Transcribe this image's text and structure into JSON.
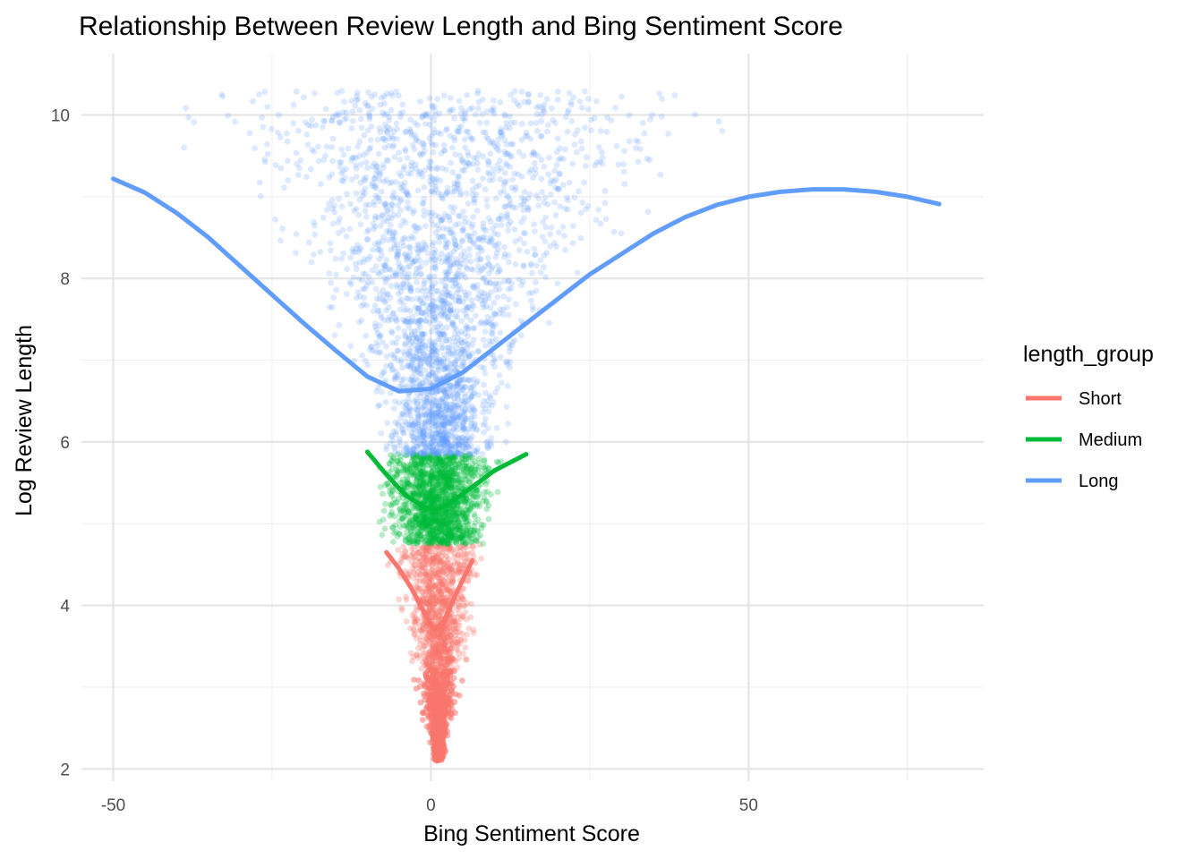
{
  "chart_data": {
    "type": "scatter",
    "title": "Relationship Between Review Length and Bing Sentiment Score",
    "xlabel": "Bing Sentiment Score",
    "ylabel": "Log Review Length",
    "xlim": [
      -55,
      87
    ],
    "ylim": [
      1.85,
      10.75
    ],
    "x_ticks": [
      -50,
      0,
      50
    ],
    "x_tick_labels": [
      "-50",
      "0",
      "50"
    ],
    "y_ticks": [
      2,
      4,
      6,
      8,
      10
    ],
    "y_tick_labels": [
      "2",
      "4",
      "6",
      "8",
      "10"
    ],
    "grid": true,
    "legend": {
      "title": "length_group",
      "position": "right",
      "entries": [
        "Short",
        "Medium",
        "Long"
      ]
    },
    "series": [
      {
        "name": "Short",
        "color": "#F8766D",
        "y_range": [
          2.1,
          4.75
        ],
        "trend": {
          "x": [
            -7,
            -5,
            -3,
            -1,
            0.5,
            2,
            4,
            6.5
          ],
          "y": [
            4.65,
            4.45,
            4.2,
            3.9,
            3.7,
            3.8,
            4.15,
            4.55
          ]
        }
      },
      {
        "name": "Medium",
        "color": "#00BA38",
        "y_range": [
          4.75,
          5.85
        ],
        "trend": {
          "x": [
            -10,
            -7,
            -4,
            -1,
            1,
            3,
            6,
            10,
            15
          ],
          "y": [
            5.88,
            5.6,
            5.35,
            5.2,
            5.17,
            5.25,
            5.42,
            5.65,
            5.85
          ]
        }
      },
      {
        "name": "Long",
        "color": "#619CFF",
        "y_range": [
          5.85,
          10.3
        ],
        "trend": {
          "x": [
            -50,
            -45,
            -40,
            -35,
            -30,
            -25,
            -20,
            -15,
            -10,
            -5,
            0,
            5,
            10,
            15,
            20,
            25,
            30,
            35,
            40,
            45,
            50,
            55,
            60,
            65,
            70,
            75,
            80
          ],
          "y": [
            9.22,
            9.05,
            8.8,
            8.5,
            8.15,
            7.8,
            7.45,
            7.12,
            6.8,
            6.62,
            6.65,
            6.85,
            7.15,
            7.45,
            7.75,
            8.05,
            8.3,
            8.55,
            8.75,
            8.9,
            9.0,
            9.06,
            9.09,
            9.09,
            9.06,
            9.0,
            8.91
          ]
        }
      }
    ]
  }
}
